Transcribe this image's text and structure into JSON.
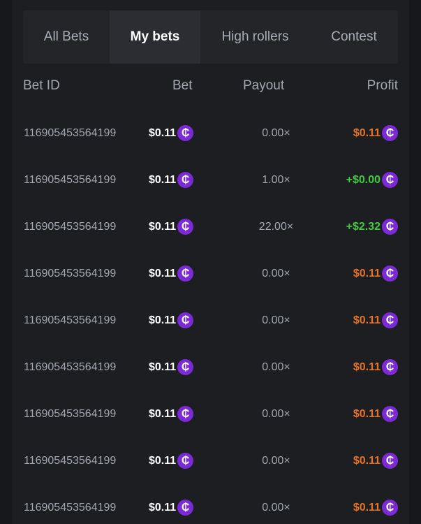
{
  "tabs": [
    {
      "label": "All Bets"
    },
    {
      "label": "My bets",
      "active": true
    },
    {
      "label": "High rollers"
    },
    {
      "label": "Contest"
    }
  ],
  "columns": {
    "bet_id": "Bet ID",
    "bet": "Bet",
    "payout": "Payout",
    "profit": "Profit"
  },
  "coin_symbol": "₵",
  "colors": {
    "loss": "#e8731f",
    "win": "#3fcc3a",
    "coin": "#7b2ad6"
  },
  "rows": [
    {
      "id": "116905453564199",
      "bet": "$0.11",
      "payout": "0.00×",
      "profit": "$0.11",
      "status": "loss"
    },
    {
      "id": "116905453564199",
      "bet": "$0.11",
      "payout": "1.00×",
      "profit": "+$0.00",
      "status": "win"
    },
    {
      "id": "116905453564199",
      "bet": "$0.11",
      "payout": "22.00×",
      "profit": "+$2.32",
      "status": "win"
    },
    {
      "id": "116905453564199",
      "bet": "$0.11",
      "payout": "0.00×",
      "profit": "$0.11",
      "status": "loss"
    },
    {
      "id": "116905453564199",
      "bet": "$0.11",
      "payout": "0.00×",
      "profit": "$0.11",
      "status": "loss"
    },
    {
      "id": "116905453564199",
      "bet": "$0.11",
      "payout": "0.00×",
      "profit": "$0.11",
      "status": "loss"
    },
    {
      "id": "116905453564199",
      "bet": "$0.11",
      "payout": "0.00×",
      "profit": "$0.11",
      "status": "loss"
    },
    {
      "id": "116905453564199",
      "bet": "$0.11",
      "payout": "0.00×",
      "profit": "$0.11",
      "status": "loss"
    },
    {
      "id": "116905453564199",
      "bet": "$0.11",
      "payout": "0.00×",
      "profit": "$0.11",
      "status": "loss"
    }
  ]
}
